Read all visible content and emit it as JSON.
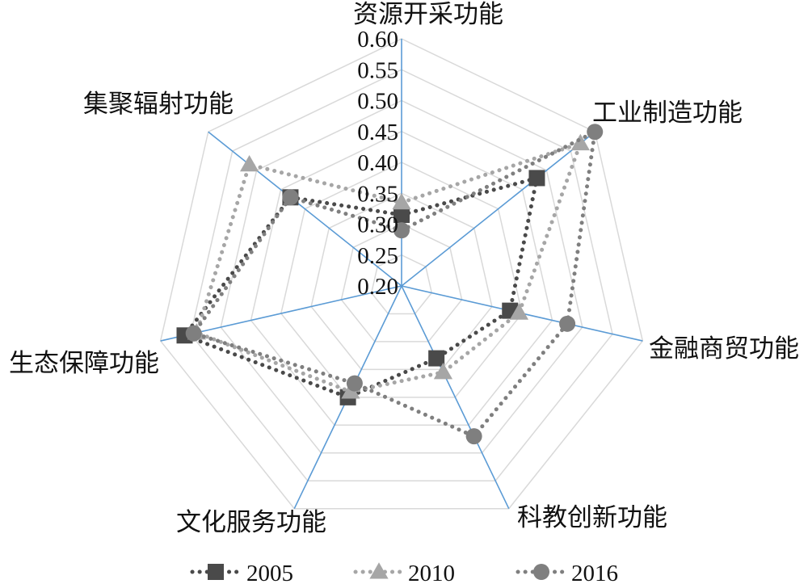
{
  "chart_data": {
    "type": "radar",
    "categories": [
      "资源开采功能",
      "工业制造功能",
      "金融商贸功能",
      "科教创新功能",
      "文化服务功能",
      "生态保障功能",
      "集聚辐射功能"
    ],
    "ticks": [
      "0.20",
      "0.25",
      "0.30",
      "0.35",
      "0.40",
      "0.45",
      "0.50",
      "0.55",
      "0.60"
    ],
    "rlim": [
      0.2,
      0.6
    ],
    "grid": true,
    "legend_position": "bottom",
    "series": [
      {
        "name": "2005",
        "marker": "square",
        "color": "#4a4a4a",
        "values": [
          0.315,
          0.48,
          0.38,
          0.33,
          0.4,
          0.56,
          0.43
        ]
      },
      {
        "name": "2010",
        "marker": "triangle",
        "color": "#a6a6a6",
        "values": [
          0.335,
          0.57,
          0.395,
          0.355,
          0.39,
          0.54,
          0.515
        ]
      },
      {
        "name": "2016",
        "marker": "circle",
        "color": "#7f7f7f",
        "values": [
          0.29,
          0.6,
          0.475,
          0.47,
          0.375,
          0.545,
          0.43
        ]
      }
    ]
  },
  "colors": {
    "axis": "#5b9bd5",
    "grid": "#d9d9d9"
  }
}
